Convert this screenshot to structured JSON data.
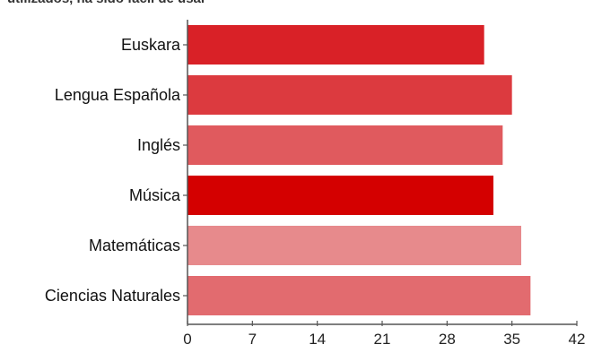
{
  "caption_fragment": "utilizados, ha sido fácil de usar",
  "chart_data": {
    "type": "bar",
    "orientation": "horizontal",
    "title": "",
    "xlabel": "",
    "ylabel": "",
    "categories": [
      "Euskara",
      "Lengua Española",
      "Inglés",
      "Música",
      "Matemáticas",
      "Ciencias Naturales"
    ],
    "values": [
      32,
      35,
      34,
      33,
      36,
      37
    ],
    "colors": [
      "#d92127",
      "#dc3a3f",
      "#e05a5e",
      "#d40000",
      "#e78a8c",
      "#e26b6f"
    ],
    "xlim": [
      0,
      42
    ],
    "xticks": [
      0,
      7,
      14,
      21,
      28,
      35,
      42
    ],
    "grid": false
  }
}
